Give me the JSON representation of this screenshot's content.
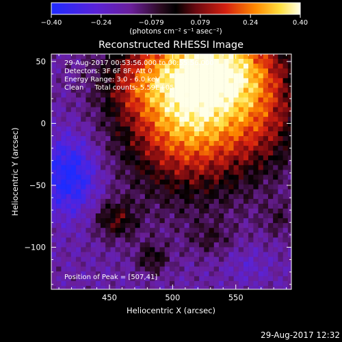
{
  "chart_data": {
    "type": "heatmap",
    "title": "Reconstructed RHESSI Image",
    "xlabel": "Heliocentric X (arcsec)",
    "ylabel": "Heliocentric Y (arcsec)",
    "xlim": [
      404,
      594
    ],
    "ylim": [
      -134,
      56
    ],
    "xticks": [
      450,
      500,
      550
    ],
    "yticks": [
      50,
      0,
      -50,
      -100
    ],
    "colorbar": {
      "label": "(photons cm⁻² s⁻¹ asec⁻²)",
      "range": [
        -0.4,
        0.4
      ],
      "ticks": [
        "−0.40",
        "−0.24",
        "−0.079",
        "0.079",
        "0.24",
        "0.40"
      ],
      "tick_values": [
        -0.4,
        -0.24,
        -0.079,
        0.079,
        0.24,
        0.4
      ]
    },
    "annotations": [
      "29-Aug-2017 00:53:56.000 to 00:55:56.000",
      "Detectors: 3F 6F 8F, Att 0",
      "Energy Range: 3.0 - 6.0 keV",
      "Clean     Total counts: 5.59E+05"
    ],
    "peak_label": "Position of Peak = [507,41]",
    "peak": [
      507,
      41
    ],
    "grid": false
  },
  "timestamp": "29-Aug-2017 12:32"
}
